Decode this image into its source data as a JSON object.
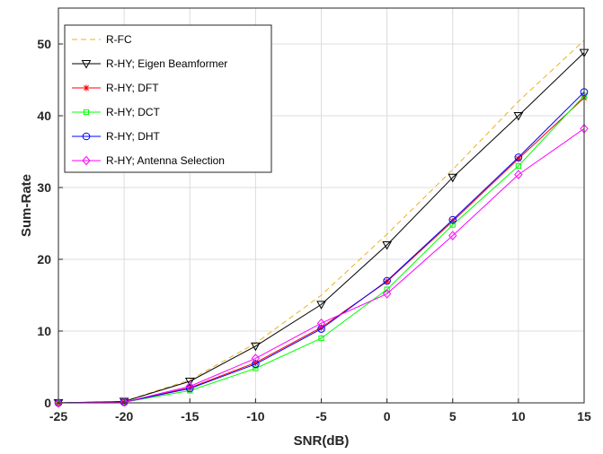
{
  "chart_data": {
    "type": "line",
    "title": "",
    "xlabel": "SNR(dB)",
    "ylabel": "Sum-Rate",
    "xlim": [
      -25,
      15
    ],
    "ylim": [
      0,
      55
    ],
    "xticks": [
      -25,
      -20,
      -15,
      -10,
      -5,
      0,
      5,
      10,
      15
    ],
    "yticks": [
      0,
      10,
      20,
      30,
      40,
      50
    ],
    "grid": true,
    "legend_position": "top-left",
    "x": [
      -25,
      -20,
      -15,
      -10,
      -5,
      0,
      5,
      10,
      15
    ],
    "series": [
      {
        "name": "R-FC",
        "color": "#EDB120",
        "dash": "dashed",
        "marker": "none",
        "values": [
          0.0,
          0.2,
          3.2,
          8.3,
          15.0,
          23.5,
          32.5,
          42.0,
          50.5
        ]
      },
      {
        "name": "R-HY; Eigen Beamformer",
        "color": "#000000",
        "dash": "solid",
        "marker": "triangle-down",
        "values": [
          0.0,
          0.2,
          3.0,
          7.9,
          13.7,
          22.0,
          31.4,
          40.0,
          48.8
        ]
      },
      {
        "name": "R-HY; DFT",
        "color": "#FF0000",
        "dash": "solid",
        "marker": "star",
        "values": [
          0.0,
          0.1,
          2.1,
          5.6,
          10.5,
          16.9,
          25.3,
          34.0,
          42.5
        ]
      },
      {
        "name": "R-HY; DCT",
        "color": "#00FF00",
        "dash": "solid",
        "marker": "square",
        "values": [
          0.0,
          0.1,
          1.7,
          4.8,
          9.0,
          15.8,
          24.8,
          33.0,
          42.8
        ]
      },
      {
        "name": "R-HY; DHT",
        "color": "#0000FF",
        "dash": "solid",
        "marker": "circle",
        "values": [
          0.0,
          0.1,
          2.0,
          5.4,
          10.3,
          17.0,
          25.5,
          34.2,
          43.3
        ]
      },
      {
        "name": "R-HY; Antenna Selection",
        "color": "#FF00FF",
        "dash": "solid",
        "marker": "diamond",
        "values": [
          0.0,
          0.1,
          2.3,
          6.2,
          11.1,
          15.2,
          23.3,
          31.8,
          38.2
        ]
      }
    ]
  }
}
